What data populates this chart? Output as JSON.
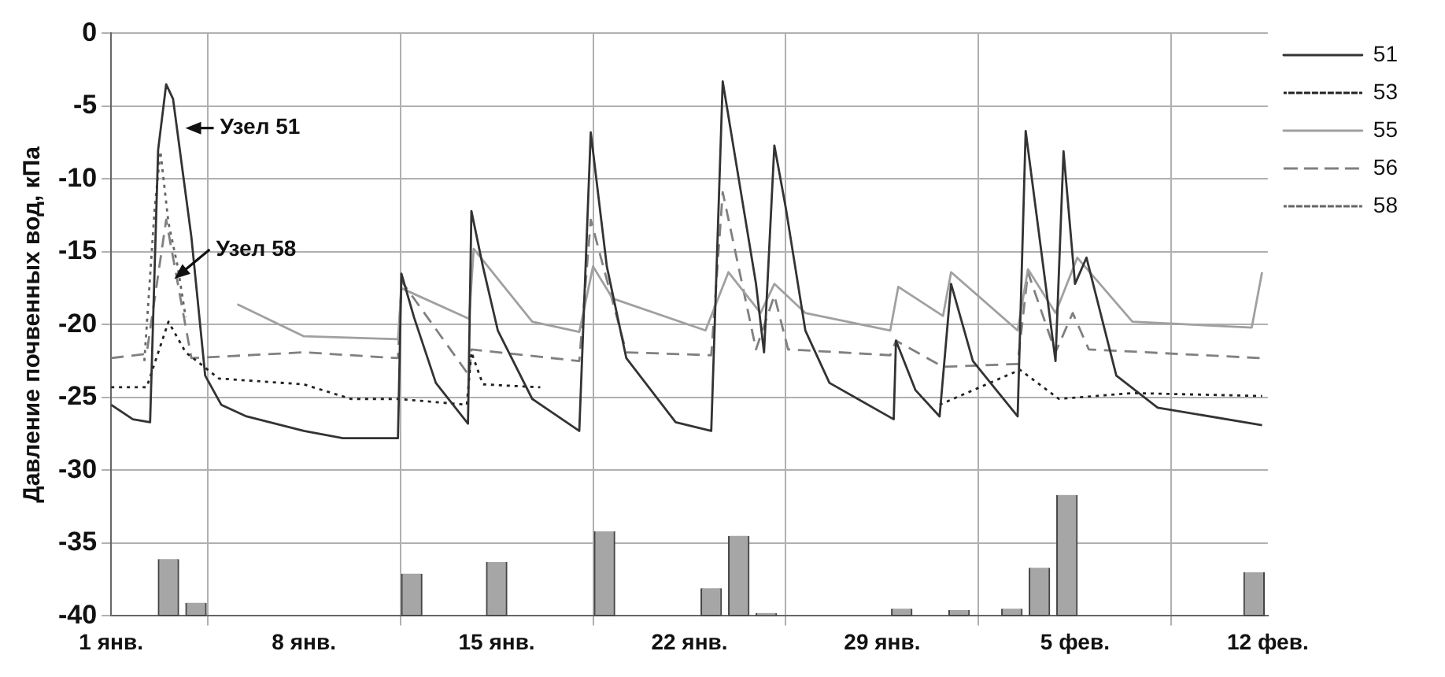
{
  "chart_data": {
    "type": "line",
    "ylabel": "Давление почвенных вод, кПа",
    "xlim": [
      "--01-01",
      "--02-12"
    ],
    "xticks": [
      {
        "value": "--01-01",
        "label": "1 янв."
      },
      {
        "value": "--01-08",
        "label": "8 янв."
      },
      {
        "value": "--01-15",
        "label": "15 янв."
      },
      {
        "value": "--01-22",
        "label": "22 янв."
      },
      {
        "value": "--01-29",
        "label": "29 янв."
      },
      {
        "value": "--02-05",
        "label": "5 фев."
      },
      {
        "value": "--02-12",
        "label": "12 фев."
      }
    ],
    "ylim": [
      -40,
      0
    ],
    "yticks": [
      0,
      -5,
      -10,
      -15,
      -20,
      -25,
      -30,
      -35,
      -40
    ],
    "grid": true,
    "legend": "top right",
    "annotations": [
      {
        "text": "Узел 51",
        "x": "--01-03T14:00",
        "y": -6.5
      },
      {
        "text": "Узел 58",
        "x": "--01-03T05:00",
        "y": -17
      }
    ],
    "series": [
      {
        "name": "51",
        "color": "#333333",
        "line_style": "solid",
        "x": [
          "--01-01T00:00",
          "--01-01T19:00",
          "--01-02T10:00",
          "--01-02T17:00",
          "--01-03T00:00",
          "--01-03T06:00",
          "--01-03T22:00",
          "--01-04T10:00",
          "--01-05T00:00",
          "--01-05T22:00",
          "--01-08T00:00",
          "--01-09T10:00",
          "--01-11T10:00",
          "--01-11T13:00",
          "--01-12T00:00",
          "--01-12T19:00",
          "--01-13T23:00",
          "--01-14T02:00",
          "--01-14T12:00",
          "--01-15T01:00",
          "--01-16T07:00",
          "--01-18T00:00",
          "--01-18T10:00",
          "--01-19T00:00",
          "--01-19T17:00",
          "--01-21T12:00",
          "--01-22T19:00",
          "--01-23T05:00",
          "--01-24T10:00",
          "--01-24T17:00",
          "--01-25T02:00",
          "--01-25T12:00",
          "--01-26T05:00",
          "--01-27T02:00",
          "--01-29T10:00",
          "--01-29T12:00",
          "--01-30T05:00",
          "--01-31T02:00",
          "--01-31T12:00",
          "--02-01T07:00",
          "--02-02T22:00",
          "--02-03T05:00",
          "--02-04T07:00",
          "--02-04T14:00",
          "--02-05T00:00",
          "--02-05T10:00",
          "--02-06T12:00",
          "--02-08T00:00",
          "--02-11T19:00"
        ],
        "values": [
          -25.5,
          -26.5,
          -26.7,
          -8,
          -3.5,
          -4.5,
          -14,
          -23.5,
          -25.5,
          -26.3,
          -27.3,
          -27.8,
          -27.8,
          -16.5,
          -19.5,
          -24,
          -26.8,
          -12.2,
          -16,
          -20.4,
          -25.1,
          -27.3,
          -6.8,
          -16,
          -22.3,
          -26.7,
          -27.3,
          -3.3,
          -17.2,
          -21.9,
          -7.7,
          -12,
          -20.4,
          -24,
          -26.5,
          -21.1,
          -24.5,
          -26.3,
          -17.2,
          -22.5,
          -26.3,
          -6.7,
          -22.5,
          -8.1,
          -17.2,
          -15.4,
          -23.5,
          -25.7,
          -26.9
        ]
      },
      {
        "name": "53",
        "color": "#222222",
        "line_style": "dotted",
        "x": [
          "--01-01T00:00",
          "--01-02T07:00",
          "--01-03T02:00",
          "--01-03T17:00",
          "--01-04T22:00",
          "--01-08T00:00",
          "--01-09T17:00",
          "--01-11T10:00",
          "--01-13T22:00",
          "--01-14T02:00",
          "--01-14T12:00",
          "--01-16T14:00",
          "--01-21T00:00",
          "--01-31T02:00",
          "--02-03T00:00",
          "--02-04T10:00",
          "--02-07T02:00",
          "--02-11T19:00"
        ],
        "values": [
          -24.3,
          -24.3,
          -19.8,
          -21.9,
          -23.7,
          -24.1,
          -25.1,
          -25.1,
          -25.5,
          -21.9,
          -24.1,
          -24.3,
          null,
          -25.5,
          -23.1,
          -25.1,
          -24.7,
          -24.9
        ]
      },
      {
        "name": "55",
        "color": "#a0a0a0",
        "line_style": "solid",
        "x": [
          "--01-05T14:00",
          "--01-08T00:00",
          "--01-11T10:00",
          "--01-11T13:00",
          "--01-14T00:00",
          "--01-14T04:00",
          "--01-16T07:00",
          "--01-18T00:00",
          "--01-18T12:00",
          "--01-19T05:00",
          "--01-22T14:00",
          "--01-23T10:00",
          "--01-24T14:00",
          "--01-25T02:00",
          "--01-26T05:00",
          "--01-29T07:00",
          "--01-29T14:00",
          "--01-31T05:00",
          "--01-31T12:00",
          "--02-02T22:00",
          "--02-03T07:00",
          "--02-04T07:00",
          "--02-05T02:00",
          "--02-07T02:00",
          "--02-11T10:00",
          "--02-11T19:00"
        ],
        "values": [
          -18.6,
          -20.8,
          -21,
          -17.5,
          -19.6,
          -14.8,
          -19.8,
          -20.5,
          -16,
          -18.2,
          -20.4,
          -16.4,
          -19.2,
          -17.2,
          -19.2,
          -20.4,
          -17.4,
          -19.4,
          -16.4,
          -20.4,
          -16.2,
          -19.2,
          -15.4,
          -19.8,
          -20.2,
          -16.4
        ]
      },
      {
        "name": "56",
        "color": "#808080",
        "line_style": "dashed",
        "x": [
          "--01-01T00:00",
          "--01-02T07:00",
          "--01-03T00:00",
          "--01-03T22:00",
          "--01-08T00:00",
          "--01-11T10:00",
          "--01-11T13:00",
          "--01-14T00:00",
          "--01-14T02:00",
          "--01-18T00:00",
          "--01-18T10:00",
          "--01-19T17:00",
          "--01-22T19:00",
          "--01-23T05:00",
          "--01-24T10:00",
          "--01-25T02:00",
          "--01-25T14:00",
          "--01-29T07:00",
          "--01-29T12:00",
          "--01-31T05:00",
          "--02-02T22:00",
          "--02-03T07:00",
          "--02-04T07:00",
          "--02-04T22:00",
          "--02-05T12:00",
          "--02-11T19:00"
        ],
        "values": [
          -22.3,
          -22,
          -12.8,
          -22.3,
          -21.9,
          -22.3,
          -17,
          -23.5,
          -21.7,
          -22.5,
          -12.8,
          -21.9,
          -22.1,
          -10.9,
          -21.7,
          -18,
          -21.7,
          -22.1,
          -21.1,
          -22.9,
          -22.7,
          -16.4,
          -21.9,
          -19.2,
          -21.7,
          -22.3
        ]
      },
      {
        "name": "58",
        "color": "#666666",
        "line_style": "dotted",
        "x": [
          "--01-02T05:00",
          "--01-02T14:00",
          "--01-02T19:00",
          "--01-03T02:00",
          "--01-03T10:00",
          "--01-03T17:00"
        ],
        "values": [
          -22.5,
          -12,
          -8.1,
          -13,
          -16,
          -19.5
        ]
      },
      {
        "type": "bar",
        "color": "#a6a6a6",
        "x": [
          "--01-03T02:00",
          "--01-04T02:00",
          "--01-11T22:00",
          "--01-15T00:00",
          "--01-18T22:00",
          "--01-22T19:00",
          "--01-23T19:00",
          "--01-24T19:00",
          "--01-29T17:00",
          "--01-31T19:00",
          "--02-02T17:00",
          "--02-03T17:00",
          "--02-04T17:00",
          "--02-11T12:00"
        ],
        "base": [
          -40,
          -40,
          -40,
          -40,
          -40,
          -40,
          -40,
          -40,
          -40,
          -40,
          -40,
          -40,
          -40,
          -40
        ],
        "values": [
          3.9,
          0.9,
          2.9,
          3.7,
          5.8,
          1.9,
          5.5,
          0.2,
          0.5,
          0.4,
          0.5,
          3.3,
          8.3,
          3.0
        ]
      }
    ]
  }
}
